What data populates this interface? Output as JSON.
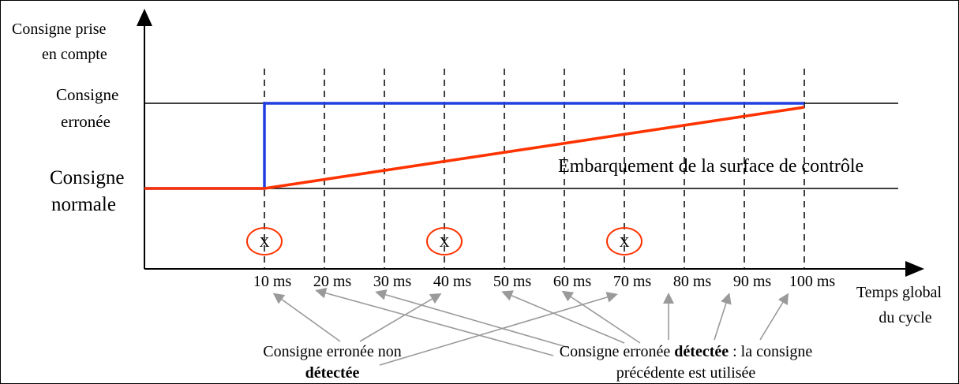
{
  "y_axis_label_line1": "Consigne prise",
  "y_axis_label_line2": "en compte",
  "level_high_line1": "Consigne",
  "level_high_line2": "erronée",
  "level_low_line1": "Consigne",
  "level_low_line2": "normale",
  "curve_annotation": "Embarquement de la surface de contrôle",
  "x_axis_label_line1": "Temps global",
  "x_axis_label_line2": "du cycle",
  "time_ticks": [
    "10 ms",
    "20 ms",
    "30 ms",
    "40 ms",
    "50 ms",
    "60 ms",
    "70 ms",
    "80 ms",
    "90 ms",
    "100 ms"
  ],
  "undetected_marker": "X",
  "undetected_cycles": [
    "10 ms",
    "40 ms",
    "70 ms"
  ],
  "note_undetected": {
    "line1": "Consigne erronée non",
    "line2_bold": "détectée"
  },
  "note_detected": {
    "line1_pre": "Consigne erronée ",
    "line1_bold": "détectée",
    "line1_post": " : la consigne",
    "line2": "précédente est utilisée"
  },
  "colors": {
    "commanded_signal": "#1f3fe0",
    "surface_response": "#ff3300",
    "marker": "#ff3300",
    "arrows": "#9a9a9a",
    "axes": "#000000"
  }
}
